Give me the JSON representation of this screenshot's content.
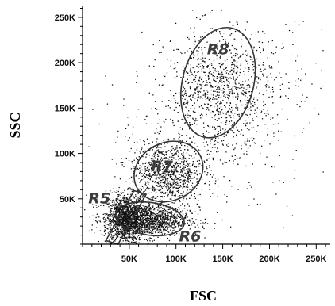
{
  "chart_data": {
    "type": "scatter",
    "title": "",
    "xlabel": "FSC",
    "ylabel": "SSC",
    "xlim": [
      0,
      265000
    ],
    "ylim": [
      0,
      262144
    ],
    "x_ticks": [
      {
        "value": 50000,
        "label": "50K"
      },
      {
        "value": 100000,
        "label": "100K"
      },
      {
        "value": 150000,
        "label": "150K"
      },
      {
        "value": 200000,
        "label": "200K"
      },
      {
        "value": 250000,
        "label": "250K"
      }
    ],
    "y_ticks": [
      {
        "value": 50000,
        "label": "50K"
      },
      {
        "value": 100000,
        "label": "100K"
      },
      {
        "value": 150000,
        "label": "150K"
      },
      {
        "value": 200000,
        "label": "200K"
      },
      {
        "value": 250000,
        "label": "250K"
      }
    ],
    "clusters": [
      {
        "name": "R5",
        "center": [
          45000,
          28000
        ],
        "spread": [
          10000,
          14000
        ],
        "count": 1100
      },
      {
        "name": "R6",
        "center": [
          68000,
          27000
        ],
        "spread": [
          22000,
          9000
        ],
        "count": 1300
      },
      {
        "name": "R7",
        "center": [
          90000,
          78000
        ],
        "spread": [
          20000,
          18000
        ],
        "count": 900
      },
      {
        "name": "R8",
        "center": [
          145000,
          172000
        ],
        "spread": [
          28000,
          33000
        ],
        "count": 900
      },
      {
        "name": "background",
        "center": [
          150000,
          140000
        ],
        "spread": [
          60000,
          60000
        ],
        "count": 500
      }
    ],
    "gates": [
      {
        "name": "R5",
        "label": "R5",
        "shape": "polygon",
        "vertices": [
          [
            25000,
            4000
          ],
          [
            55000,
            59000
          ],
          [
            68000,
            55000
          ],
          [
            38000,
            0
          ]
        ],
        "label_at": [
          18000,
          50000
        ]
      },
      {
        "name": "R6",
        "label": "R6",
        "shape": "ellipse",
        "center": [
          72000,
          28000
        ],
        "radii": [
          37000,
          18000
        ],
        "rotation": 8,
        "label_at": [
          115000,
          8000
        ]
      },
      {
        "name": "R7",
        "label": "R7",
        "shape": "ellipse",
        "center": [
          92000,
          80000
        ],
        "radii": [
          38000,
          32000
        ],
        "rotation": -25,
        "label_at": [
          85000,
          85000
        ]
      },
      {
        "name": "R8",
        "label": "R8",
        "shape": "ellipse",
        "center": [
          145000,
          178000
        ],
        "radii": [
          38000,
          62000
        ],
        "rotation": 15,
        "label_at": [
          145000,
          214000
        ]
      }
    ],
    "grid": false
  }
}
